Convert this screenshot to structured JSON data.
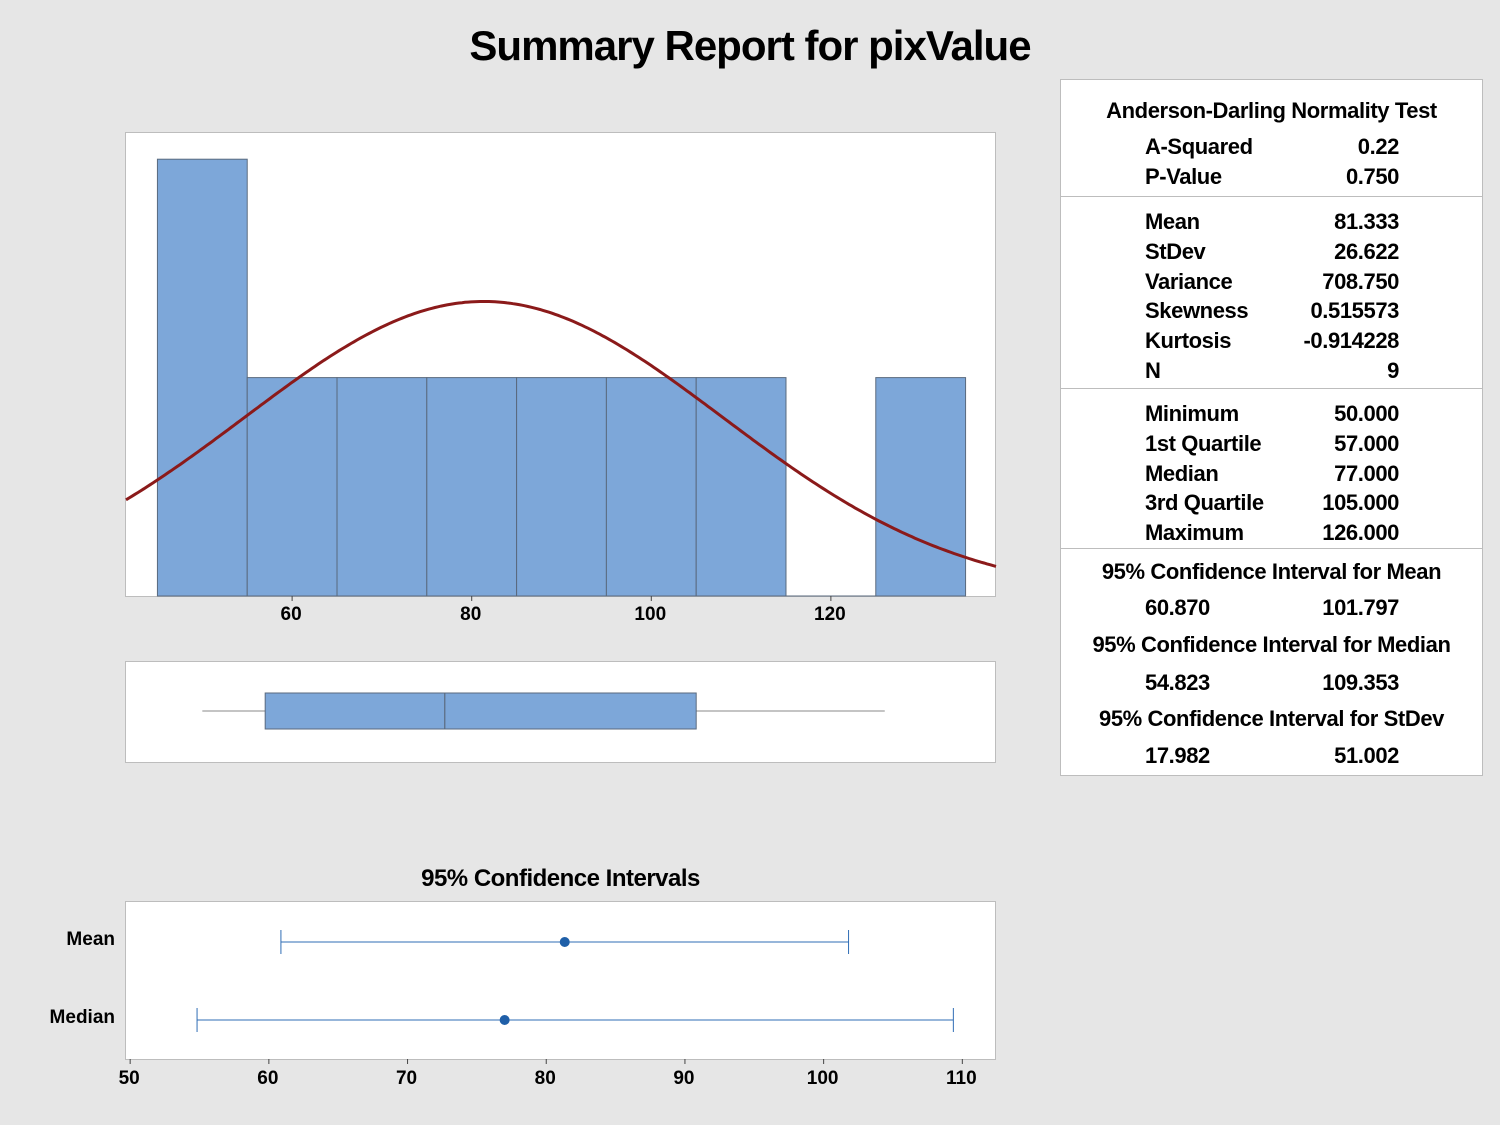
{
  "title": "Summary Report for pixValue",
  "colors": {
    "bar": "#7da7d9",
    "bar_edge": "#5a6a7e",
    "curve": "#8b1a1a",
    "ci_line": "#2f6db5",
    "ci_dot": "#1f5fa8",
    "background": "#e6e6e6"
  },
  "stats": {
    "ad_title": "Anderson-Darling Normality Test",
    "ad_rows": [
      {
        "label": "A-Squared",
        "value": "0.22"
      },
      {
        "label": "P-Value",
        "value": "0.750"
      }
    ],
    "moment_rows": [
      {
        "label": "Mean",
        "value": "81.333"
      },
      {
        "label": "StDev",
        "value": "26.622"
      },
      {
        "label": "Variance",
        "value": "708.750"
      },
      {
        "label": "Skewness",
        "value": "0.515573"
      },
      {
        "label": "Kurtosis",
        "value": "-0.914228"
      },
      {
        "label": "N",
        "value": "9"
      }
    ],
    "quartile_rows": [
      {
        "label": "Minimum",
        "value": "50.000"
      },
      {
        "label": "1st Quartile",
        "value": "57.000"
      },
      {
        "label": "Median",
        "value": "77.000"
      },
      {
        "label": "3rd Quartile",
        "value": "105.000"
      },
      {
        "label": "Maximum",
        "value": "126.000"
      }
    ],
    "ci_mean_title": "95% Confidence Interval for Mean",
    "ci_mean": {
      "low": "60.870",
      "high": "101.797"
    },
    "ci_median_title": "95% Confidence Interval for Median",
    "ci_median": {
      "low": "54.823",
      "high": "109.353"
    },
    "ci_stdev_title": "95% Confidence Interval for StDev",
    "ci_stdev": {
      "low": "17.982",
      "high": "51.002"
    }
  },
  "chart_data": [
    {
      "type": "bar",
      "subtype": "histogram",
      "bin_edges": [
        45,
        55,
        65,
        75,
        85,
        95,
        105,
        115,
        125,
        135
      ],
      "counts": [
        2,
        1,
        1,
        1,
        1,
        1,
        1,
        0,
        1
      ],
      "xlim": [
        41.5,
        138.5
      ],
      "ylim": [
        0,
        2.12
      ],
      "xticks": [
        60,
        80,
        100,
        120
      ],
      "normal_fit": {
        "mean": 81.333,
        "stdev": 26.622
      },
      "grid": false
    },
    {
      "type": "box",
      "min": 50,
      "q1": 57,
      "median": 77,
      "q3": 105,
      "max": 126
    },
    {
      "type": "scatter",
      "subtype": "interval",
      "title": "95% Confidence Intervals",
      "categories": [
        "Mean",
        "Median"
      ],
      "estimates": [
        81.333,
        77.0
      ],
      "lower": [
        60.87,
        54.823
      ],
      "upper": [
        101.797,
        109.353
      ],
      "xlim": [
        49.7,
        112.5
      ],
      "xticks": [
        50,
        60,
        70,
        80,
        90,
        100,
        110
      ]
    }
  ]
}
